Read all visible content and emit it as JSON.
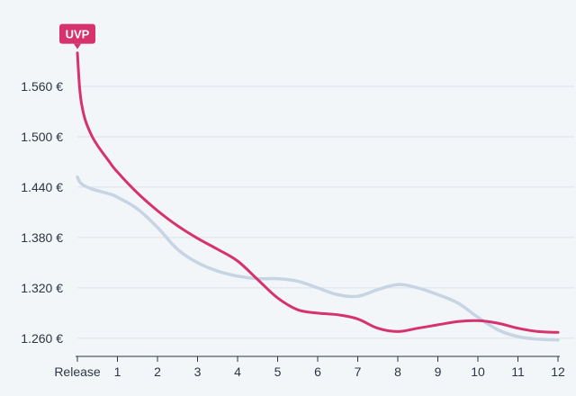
{
  "chart_data": {
    "type": "line",
    "x": [
      0,
      0.1,
      0.35,
      0.8,
      1,
      1.5,
      2,
      2.5,
      3,
      3.5,
      4,
      4.5,
      5,
      5.5,
      6,
      6.5,
      7,
      7.5,
      8,
      8.5,
      9,
      9.5,
      10,
      10.5,
      11,
      11.5,
      12
    ],
    "x_ticks": [
      "Release",
      "1",
      "2",
      "3",
      "4",
      "5",
      "6",
      "7",
      "8",
      "9",
      "10",
      "11",
      "12"
    ],
    "y_ticks": [
      "1.260 €",
      "1.320 €",
      "1.380 €",
      "1.440 €",
      "1.500 €",
      "1.560 €"
    ],
    "ylim": [
      1247,
      1620
    ],
    "xlim": [
      0,
      12
    ],
    "grid": "horizontal",
    "series": [
      {
        "role": "highlight",
        "color": "#d6336c",
        "values": [
          1600,
          1540,
          1502,
          1470,
          1458,
          1433,
          1412,
          1394,
          1379,
          1366,
          1352,
          1330,
          1308,
          1294,
          1290,
          1288,
          1283,
          1272,
          1268,
          1272,
          1276,
          1280,
          1281,
          1278,
          1272,
          1268,
          1267
        ]
      },
      {
        "role": "background",
        "color": "#c6d4e3",
        "values": [
          1452,
          1444,
          1438,
          1432,
          1428,
          1414,
          1392,
          1366,
          1350,
          1340,
          1334,
          1331,
          1331,
          1328,
          1320,
          1312,
          1310,
          1318,
          1324,
          1320,
          1312,
          1302,
          1285,
          1270,
          1262,
          1259,
          1258
        ]
      }
    ],
    "annotations": [
      {
        "label": "UVP",
        "x": 0,
        "y": 1600,
        "series": 0
      }
    ]
  }
}
